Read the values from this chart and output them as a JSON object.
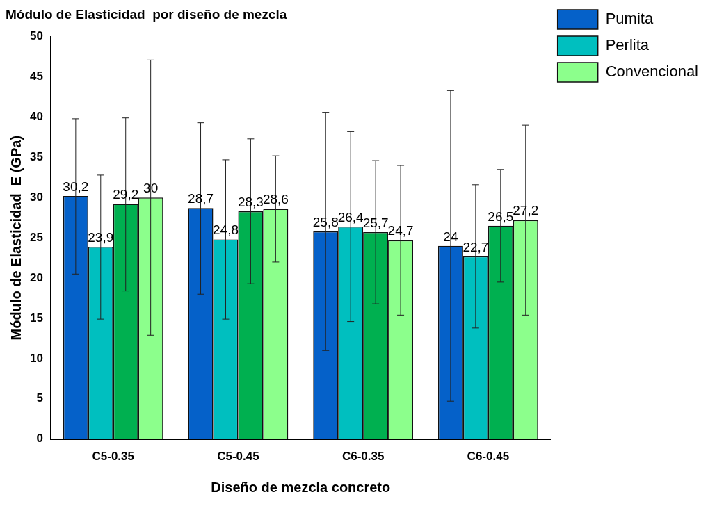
{
  "chart_data": {
    "type": "bar",
    "title": "Módulo de Elasticidad  por diseño de mezcla",
    "xlabel": "Diseño de mezcla concreto",
    "ylabel": "Módulo de Elasticidad  E (GPa)",
    "categories": [
      "C5-0.35",
      "C5-0.45",
      "C6-0.35",
      "C6-0.45"
    ],
    "ylim": [
      0,
      50
    ],
    "yticks": [
      0,
      5,
      10,
      15,
      20,
      25,
      30,
      35,
      40,
      45,
      50
    ],
    "grid": false,
    "legend": "top right",
    "series": [
      {
        "name": "Pumita",
        "color": "#0561c9",
        "values": [
          30.2,
          28.7,
          25.8,
          24
        ],
        "value_labels": [
          "30,2",
          "28,7",
          "25,8",
          "24"
        ],
        "errors": [
          [
            20.5,
            39.8
          ],
          [
            18,
            39.3
          ],
          [
            11,
            40.6
          ],
          [
            4.7,
            43.3
          ]
        ]
      },
      {
        "name": "Perlita",
        "color": "#00bfbf",
        "values": [
          23.9,
          24.8,
          26.4,
          22.7
        ],
        "value_labels": [
          "23,9",
          "24,8",
          "26,4",
          "22,7"
        ],
        "errors": [
          [
            14.9,
            32.8
          ],
          [
            14.9,
            34.7
          ],
          [
            14.6,
            38.2
          ],
          [
            13.8,
            31.6
          ]
        ]
      },
      {
        "color": "#00b050",
        "values": [
          29.2,
          28.3,
          25.7,
          26.5
        ],
        "value_labels": [
          "29,2",
          "28,3",
          "25,7",
          "26,5"
        ],
        "errors": [
          [
            18.4,
            39.9
          ],
          [
            19.3,
            37.3
          ],
          [
            16.8,
            34.6
          ],
          [
            19.5,
            33.5
          ]
        ]
      },
      {
        "name": "Convencional",
        "color": "#8cff8c",
        "values": [
          30,
          28.6,
          24.7,
          27.2
        ],
        "value_labels": [
          "30",
          "28,6",
          "24,7",
          "27,2"
        ],
        "errors": [
          [
            12.9,
            47.1
          ],
          [
            22,
            35.2
          ],
          [
            15.4,
            34
          ],
          [
            15.4,
            39
          ]
        ]
      }
    ]
  }
}
